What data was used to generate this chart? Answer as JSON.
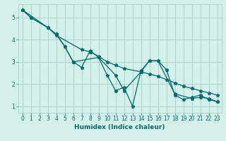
{
  "xlabel": "Humidex (Indice chaleur)",
  "bg_color": "#d4f0eb",
  "line_color": "#006b6b",
  "grid_color": "#a8cfc8",
  "xlim": [
    -0.5,
    23.5
  ],
  "ylim": [
    0.7,
    5.6
  ],
  "xticks": [
    0,
    1,
    2,
    3,
    4,
    5,
    6,
    7,
    8,
    9,
    10,
    11,
    12,
    13,
    14,
    15,
    16,
    17,
    18,
    19,
    20,
    21,
    22,
    23
  ],
  "yticks": [
    1,
    2,
    3,
    4,
    5
  ],
  "line1_x": [
    0,
    1,
    3,
    4,
    7,
    8,
    9,
    10,
    11,
    12,
    14,
    15,
    16,
    17,
    18,
    19,
    20,
    21,
    22,
    23
  ],
  "line1_y": [
    5.35,
    5.0,
    4.55,
    4.2,
    3.55,
    3.45,
    3.25,
    3.0,
    2.85,
    2.7,
    2.55,
    2.45,
    2.35,
    2.2,
    2.05,
    1.9,
    1.8,
    1.7,
    1.6,
    1.5
  ],
  "line2_x": [
    0,
    1,
    3,
    4,
    5,
    6,
    7,
    8,
    9,
    10,
    11,
    12,
    13,
    14,
    15,
    16,
    17,
    18,
    19,
    20,
    21,
    22,
    23
  ],
  "line2_y": [
    5.35,
    5.0,
    4.55,
    4.25,
    3.7,
    3.0,
    2.75,
    3.5,
    3.2,
    2.4,
    1.7,
    1.85,
    1.0,
    2.6,
    3.05,
    3.05,
    2.65,
    1.5,
    1.3,
    1.4,
    1.5,
    1.3,
    1.2
  ],
  "line3_x": [
    0,
    3,
    4,
    5,
    6,
    9,
    11,
    12,
    14,
    15,
    16,
    18,
    20,
    21,
    22,
    23
  ],
  "line3_y": [
    5.35,
    4.55,
    4.25,
    3.7,
    3.0,
    3.2,
    2.4,
    1.7,
    2.55,
    3.05,
    3.05,
    1.55,
    1.35,
    1.4,
    1.35,
    1.2
  ]
}
